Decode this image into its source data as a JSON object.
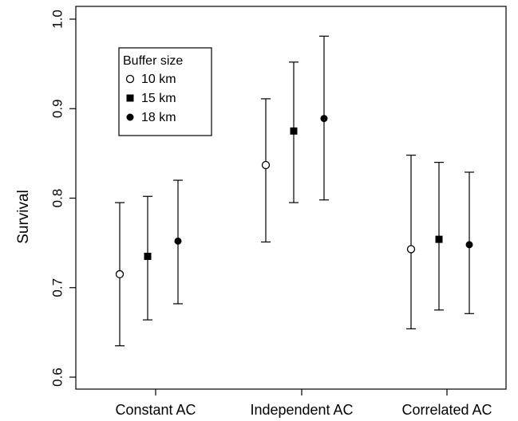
{
  "chart_data": {
    "type": "scatter",
    "subtype": "point-with-error-bars",
    "title": "",
    "xlabel": "",
    "ylabel": "Survival",
    "ylim": [
      0.6,
      1.0
    ],
    "yticks": [
      "0.6",
      "0.7",
      "0.8",
      "0.9",
      "1.0"
    ],
    "categories": [
      "Constant AC",
      "Independent AC",
      "Correlated AC"
    ],
    "grid": false,
    "legend": {
      "title": "Buffer size",
      "position": "top-left",
      "entries": [
        {
          "label": "10 km",
          "marker": "open-circle"
        },
        {
          "label": "15 km",
          "marker": "filled-square"
        },
        {
          "label": "18 km",
          "marker": "filled-circle"
        }
      ]
    },
    "series": [
      {
        "name": "10 km",
        "marker": "open-circle",
        "values": [
          0.715,
          0.837,
          0.743
        ],
        "lower": [
          0.635,
          0.751,
          0.654
        ],
        "upper": [
          0.795,
          0.911,
          0.848
        ]
      },
      {
        "name": "15 km",
        "marker": "filled-square",
        "values": [
          0.735,
          0.875,
          0.754
        ],
        "lower": [
          0.664,
          0.795,
          0.675
        ],
        "upper": [
          0.802,
          0.952,
          0.84
        ]
      },
      {
        "name": "18 km",
        "marker": "filled-circle",
        "values": [
          0.752,
          0.889,
          0.748
        ],
        "lower": [
          0.682,
          0.798,
          0.671
        ],
        "upper": [
          0.82,
          0.981,
          0.829
        ]
      }
    ]
  }
}
